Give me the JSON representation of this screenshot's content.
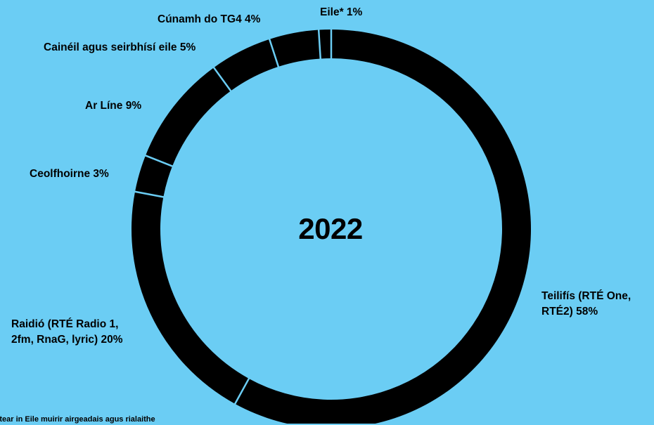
{
  "chart_data": {
    "type": "pie",
    "style": "donut",
    "center_label": "2022",
    "slices": [
      {
        "label": "Teilifís (RTÉ One, RTÉ2)  58%",
        "line1": "Teilifís (RTÉ One,",
        "line2": "RTÉ2)  58%",
        "value": 58
      },
      {
        "label": "Raidió (RTÉ Radio 1, 2fm, RnaG, lyric) 20%",
        "line1": "Raidió (RTÉ Radio 1,",
        "line2": "2fm, RnaG, lyric) 20%",
        "value": 20
      },
      {
        "label": "Ceolfhoirne 3%",
        "line1": "Ceolfhoirne 3%",
        "line2": "",
        "value": 3
      },
      {
        "label": "Ar Líne 9%",
        "line1": "Ar Líne 9%",
        "line2": "",
        "value": 9
      },
      {
        "label": "Cainéil agus seirbhísí eile 5%",
        "line1": "Cainéil agus seirbhísí eile 5%",
        "line2": "",
        "value": 5
      },
      {
        "label": "Cúnamh do TG4 4%",
        "line1": "Cúnamh do TG4 4%",
        "line2": "",
        "value": 4
      },
      {
        "label": "Eile* 1%",
        "line1": "Eile* 1%",
        "line2": "",
        "value": 1
      }
    ],
    "colors": {
      "background": "#6BCDF4",
      "ring": "#000000",
      "separator": "#6BCDF4"
    }
  },
  "footnote": "rítear in Eile muirir airgeadais agus rialaithe"
}
